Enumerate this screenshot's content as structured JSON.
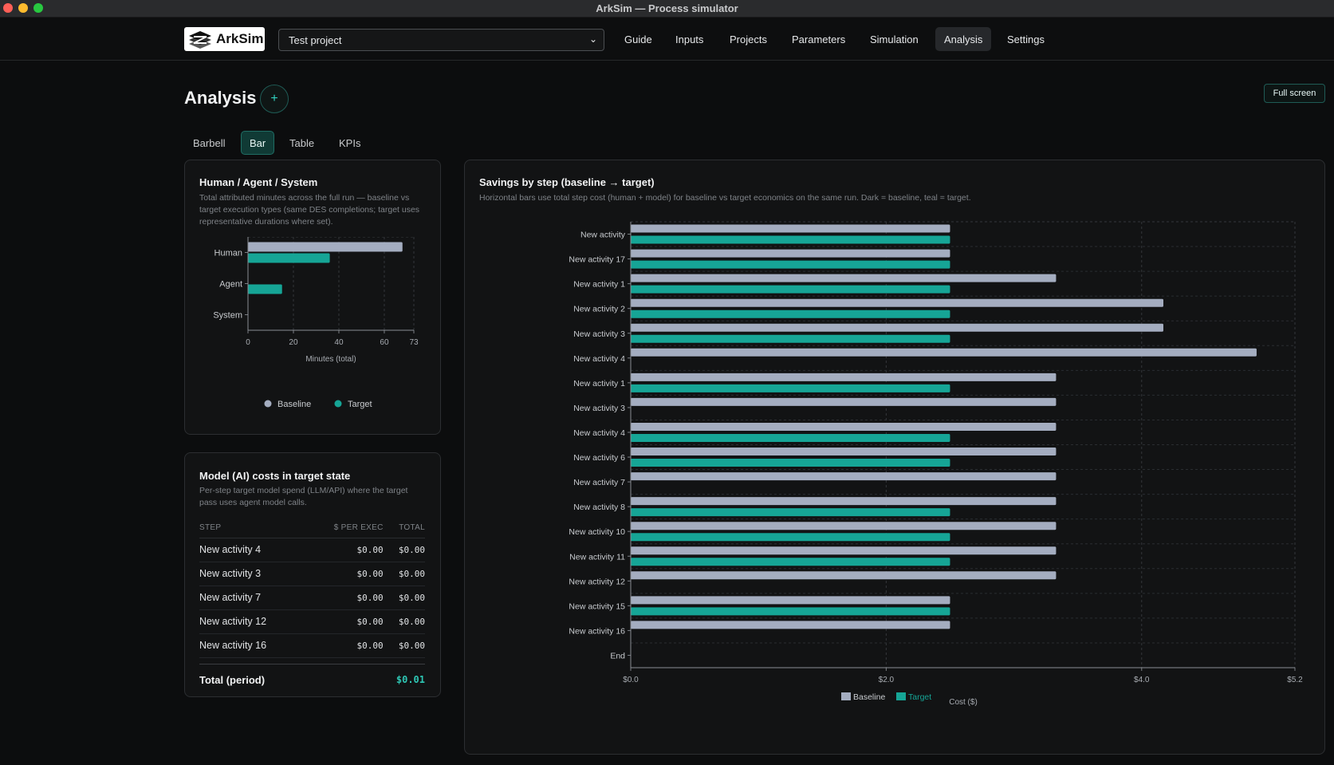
{
  "window": {
    "title": "ArkSim — Process simulator"
  },
  "brand": {
    "name": "ArkSim"
  },
  "project_select": {
    "value": "Test project"
  },
  "nav": [
    {
      "label": "Guide"
    },
    {
      "label": "Inputs"
    },
    {
      "label": "Projects"
    },
    {
      "label": "Parameters"
    },
    {
      "label": "Simulation"
    },
    {
      "label": "Analysis",
      "active": true
    },
    {
      "label": "Settings"
    }
  ],
  "page": {
    "title": "Analysis",
    "add_label": "+",
    "fullscreen_label": "Full screen"
  },
  "subtabs": [
    {
      "label": "Barbell"
    },
    {
      "label": "Bar",
      "active": true
    },
    {
      "label": "Table"
    },
    {
      "label": "KPIs"
    }
  ],
  "has_card": {
    "title": "Human / Agent / System",
    "description": "Total attributed minutes across the full run — baseline vs target execution types (same DES completions; target uses representative durations where set)."
  },
  "model_cost_card": {
    "title": "Model (AI) costs in target state",
    "description": "Per-step target model spend (LLM/API) where the target pass uses agent model calls.",
    "columns": [
      "STEP",
      "$ PER EXEC",
      "TOTAL"
    ],
    "rows": [
      [
        "New activity 4",
        "$0.00",
        "$0.00"
      ],
      [
        "New activity 3",
        "$0.00",
        "$0.00"
      ],
      [
        "New activity 7",
        "$0.00",
        "$0.00"
      ],
      [
        "New activity 12",
        "$0.00",
        "$0.00"
      ],
      [
        "New activity 16",
        "$0.00",
        "$0.00"
      ]
    ],
    "total_label": "Total (period)",
    "total_value": "$0.01"
  },
  "savings_card": {
    "title": "Savings by step (baseline → target)",
    "description": "Horizontal bars use total step cost (human + model) for baseline vs target economics on the same run. Dark = baseline, teal = target."
  },
  "colors": {
    "baseline": "#a4adc0",
    "target": "#16a596",
    "accent": "#31d1bf"
  },
  "chart_data": [
    {
      "type": "bar",
      "orientation": "horizontal",
      "categories": [
        "Human",
        "Agent",
        "System"
      ],
      "series": [
        {
          "name": "Baseline",
          "values": [
            68,
            0,
            0
          ]
        },
        {
          "name": "Target",
          "values": [
            36,
            15,
            0
          ]
        }
      ],
      "xlabel": "Minutes (total)",
      "xticks": [
        "0",
        "20",
        "40",
        "60",
        "73"
      ],
      "xlim": [
        0,
        73
      ],
      "grid": true,
      "legend": "bottom"
    },
    {
      "type": "bar",
      "orientation": "horizontal",
      "categories": [
        "New activity",
        "New activity 17",
        "New activity 1",
        "New activity 2",
        "New activity 3",
        "New activity 4",
        "New activity 1",
        "New activity 3",
        "New activity 4",
        "New activity 6",
        "New activity 7",
        "New activity 8",
        "New activity 10",
        "New activity 11",
        "New activity 12",
        "New activity 15",
        "New activity 16",
        "End"
      ],
      "series": [
        {
          "name": "Baseline",
          "values": [
            2.5,
            2.5,
            3.33,
            4.17,
            4.17,
            4.9,
            3.33,
            3.33,
            3.33,
            3.33,
            3.33,
            3.33,
            3.33,
            3.33,
            3.33,
            2.5,
            2.5,
            0
          ]
        },
        {
          "name": "Target",
          "values": [
            2.5,
            2.5,
            2.5,
            2.5,
            2.5,
            0,
            2.5,
            0,
            2.5,
            2.5,
            0,
            2.5,
            2.5,
            2.5,
            0,
            2.5,
            0,
            0
          ]
        }
      ],
      "xlabel": "Cost ($)",
      "xticks": [
        "$0.0",
        "$2.0",
        "$4.0",
        "$5.2"
      ],
      "xlim": [
        0,
        5.2
      ],
      "grid": true,
      "legend": "bottom"
    }
  ]
}
